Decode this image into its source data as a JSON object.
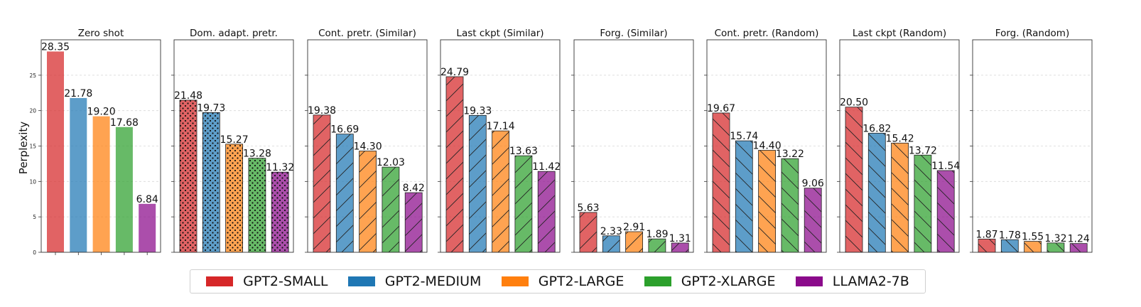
{
  "chart_data": {
    "type": "bar",
    "ylabel": "Perplexity",
    "ylim": [
      0,
      30
    ],
    "yticks": [
      0,
      5,
      10,
      15,
      20,
      25
    ],
    "grid": "horizontal-dashed",
    "legend_placement": "bottom-center",
    "series_names": [
      "GPT2-SMALL",
      "GPT2-MEDIUM",
      "GPT2-LARGE",
      "GPT2-XLARGE",
      "LLAMA2-7B"
    ],
    "series_colors": [
      "#d62728",
      "#1f77b4",
      "#ff7f0e",
      "#2ca02c",
      "#8b0a8b"
    ],
    "panels": [
      {
        "title": "Zero shot",
        "values": [
          28.35,
          21.78,
          19.2,
          17.68,
          6.84
        ],
        "labels": [
          "28.35",
          "21.78",
          "19.20",
          "17.68",
          "6.84"
        ],
        "hatch": "none"
      },
      {
        "title": "Dom. adapt. pretr.",
        "values": [
          21.48,
          19.73,
          15.27,
          13.28,
          11.32
        ],
        "labels": [
          "21.48",
          "19.73",
          "15.27",
          "13.28",
          "11.32"
        ],
        "hatch": "dots"
      },
      {
        "title": "Cont. pretr. (Similar)",
        "values": [
          19.38,
          16.69,
          14.3,
          12.03,
          8.42
        ],
        "labels": [
          "19.38",
          "16.69",
          "14.30",
          "12.03",
          "8.42"
        ],
        "hatch": "forward"
      },
      {
        "title": "Last ckpt (Similar)",
        "values": [
          24.79,
          19.33,
          17.14,
          13.63,
          11.42
        ],
        "labels": [
          "24.79",
          "19.33",
          "17.14",
          "13.63",
          "11.42"
        ],
        "hatch": "forward"
      },
      {
        "title": "Forg. (Similar)",
        "values": [
          5.63,
          2.33,
          2.91,
          1.89,
          1.31
        ],
        "labels": [
          "5.63",
          "2.33",
          "2.91",
          "1.89",
          "1.31"
        ],
        "hatch": "forward"
      },
      {
        "title": "Cont. pretr. (Random)",
        "values": [
          19.67,
          15.74,
          14.4,
          13.22,
          9.06
        ],
        "labels": [
          "19.67",
          "15.74",
          "14.40",
          "13.22",
          "9.06"
        ],
        "hatch": "back"
      },
      {
        "title": "Last ckpt (Random)",
        "values": [
          20.5,
          16.82,
          15.42,
          13.72,
          11.54
        ],
        "labels": [
          "20.50",
          "16.82",
          "15.42",
          "13.72",
          "11.54"
        ],
        "hatch": "back"
      },
      {
        "title": "Forg. (Random)",
        "values": [
          1.87,
          1.78,
          1.55,
          1.32,
          1.24
        ],
        "labels": [
          "1.87",
          "1.78",
          "1.55",
          "1.32",
          "1.24"
        ],
        "hatch": "back"
      }
    ]
  }
}
